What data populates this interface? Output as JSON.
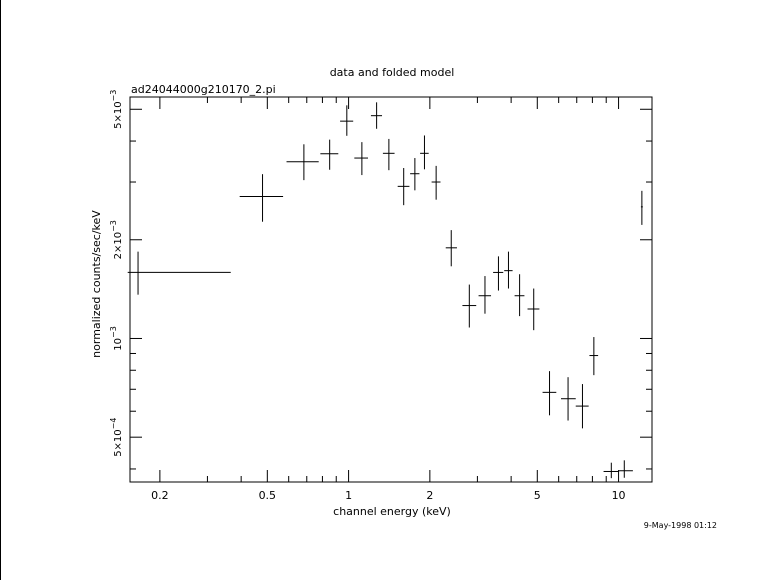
{
  "chart_data": {
    "type": "scatter",
    "title": "data and folded model",
    "subtitle": "ad24044000g210170_2.pi",
    "xlabel": "channel energy (keV)",
    "ylabel": "normalized counts/sec/keV",
    "x_scale": "log",
    "y_scale": "log",
    "xlim": [
      0.155,
      13.3
    ],
    "ylim": [
      0.000365,
      0.00545
    ],
    "x_ticks": [
      {
        "value": 0.2,
        "label": "0.2"
      },
      {
        "value": 0.5,
        "label": "0.5"
      },
      {
        "value": 1,
        "label": "1"
      },
      {
        "value": 2,
        "label": "2"
      },
      {
        "value": 5,
        "label": "5"
      },
      {
        "value": 10,
        "label": "10"
      }
    ],
    "y_ticks": [
      {
        "value": 0.0005,
        "base": "5×10",
        "exp": "−4"
      },
      {
        "value": 0.001,
        "base": "10",
        "exp": "−3"
      },
      {
        "value": 0.002,
        "base": "2×10",
        "exp": "−3"
      },
      {
        "value": 0.005,
        "base": "5×10",
        "exp": "−3"
      }
    ],
    "grid": false,
    "series": [
      {
        "points": [
          {
            "x": 0.166,
            "xlo": 0.152,
            "xhi": 0.366,
            "y": 0.00159,
            "ylo": 0.00136,
            "yhi": 0.00184
          },
          {
            "x": 0.48,
            "xlo": 0.395,
            "xhi": 0.572,
            "y": 0.00271,
            "ylo": 0.00227,
            "yhi": 0.00317
          },
          {
            "x": 0.683,
            "xlo": 0.589,
            "xhi": 0.775,
            "y": 0.00346,
            "ylo": 0.00304,
            "yhi": 0.00391
          },
          {
            "x": 0.851,
            "xlo": 0.786,
            "xhi": 0.916,
            "y": 0.00366,
            "ylo": 0.00327,
            "yhi": 0.00404
          },
          {
            "x": 0.985,
            "xlo": 0.93,
            "xhi": 1.04,
            "y": 0.0046,
            "ylo": 0.00415,
            "yhi": 0.00514
          },
          {
            "x": 1.12,
            "xlo": 1.05,
            "xhi": 1.18,
            "y": 0.00355,
            "ylo": 0.00315,
            "yhi": 0.00397
          },
          {
            "x": 1.27,
            "xlo": 1.21,
            "xhi": 1.33,
            "y": 0.00478,
            "ylo": 0.00436,
            "yhi": 0.00525
          },
          {
            "x": 1.41,
            "xlo": 1.34,
            "xhi": 1.48,
            "y": 0.00367,
            "ylo": 0.00326,
            "yhi": 0.00406
          },
          {
            "x": 1.6,
            "xlo": 1.52,
            "xhi": 1.68,
            "y": 0.00291,
            "ylo": 0.00255,
            "yhi": 0.00331
          },
          {
            "x": 1.76,
            "xlo": 1.69,
            "xhi": 1.83,
            "y": 0.00318,
            "ylo": 0.00283,
            "yhi": 0.00355
          },
          {
            "x": 1.91,
            "xlo": 1.84,
            "xhi": 1.98,
            "y": 0.00367,
            "ylo": 0.00328,
            "yhi": 0.00416
          },
          {
            "x": 2.11,
            "xlo": 2.03,
            "xhi": 2.19,
            "y": 0.003,
            "ylo": 0.00265,
            "yhi": 0.00336
          },
          {
            "x": 2.4,
            "xlo": 2.29,
            "xhi": 2.52,
            "y": 0.00189,
            "ylo": 0.00166,
            "yhi": 0.00214
          },
          {
            "x": 2.8,
            "xlo": 2.64,
            "xhi": 2.97,
            "y": 0.00126,
            "ylo": 0.00108,
            "yhi": 0.00146
          },
          {
            "x": 3.2,
            "xlo": 3.03,
            "xhi": 3.37,
            "y": 0.00135,
            "ylo": 0.00119,
            "yhi": 0.00155
          },
          {
            "x": 3.59,
            "xlo": 3.43,
            "xhi": 3.74,
            "y": 0.00159,
            "ylo": 0.0014,
            "yhi": 0.00178
          },
          {
            "x": 3.91,
            "xlo": 3.77,
            "xhi": 4.05,
            "y": 0.00161,
            "ylo": 0.00142,
            "yhi": 0.00184
          },
          {
            "x": 4.3,
            "xlo": 4.12,
            "xhi": 4.48,
            "y": 0.00135,
            "ylo": 0.00117,
            "yhi": 0.00157
          },
          {
            "x": 4.85,
            "xlo": 4.6,
            "xhi": 5.09,
            "y": 0.00123,
            "ylo": 0.00106,
            "yhi": 0.00142
          },
          {
            "x": 5.55,
            "xlo": 5.23,
            "xhi": 5.88,
            "y": 0.000685,
            "ylo": 0.000583,
            "yhi": 0.000795
          },
          {
            "x": 6.5,
            "xlo": 6.12,
            "xhi": 6.94,
            "y": 0.000655,
            "ylo": 0.000562,
            "yhi": 0.000762
          },
          {
            "x": 7.35,
            "xlo": 6.94,
            "xhi": 7.75,
            "y": 0.000622,
            "ylo": 0.000532,
            "yhi": 0.000726
          },
          {
            "x": 8.1,
            "xlo": 7.8,
            "xhi": 8.4,
            "y": 0.000887,
            "ylo": 0.000773,
            "yhi": 0.00101
          },
          {
            "x": 9.4,
            "xlo": 8.8,
            "xhi": 10.0,
            "y": 0.000393,
            "ylo": 0.000375,
            "yhi": 0.000418
          },
          {
            "x": 10.5,
            "xlo": 10.0,
            "xhi": 11.3,
            "y": 0.000395,
            "ylo": 0.000376,
            "yhi": 0.000425
          },
          {
            "x": 12.2,
            "xlo": 12.1,
            "xhi": 12.3,
            "y": 0.00252,
            "ylo": 0.00222,
            "yhi": 0.00282
          }
        ]
      }
    ]
  },
  "footer": {
    "timestamp": "9-May-1998 01:12"
  }
}
